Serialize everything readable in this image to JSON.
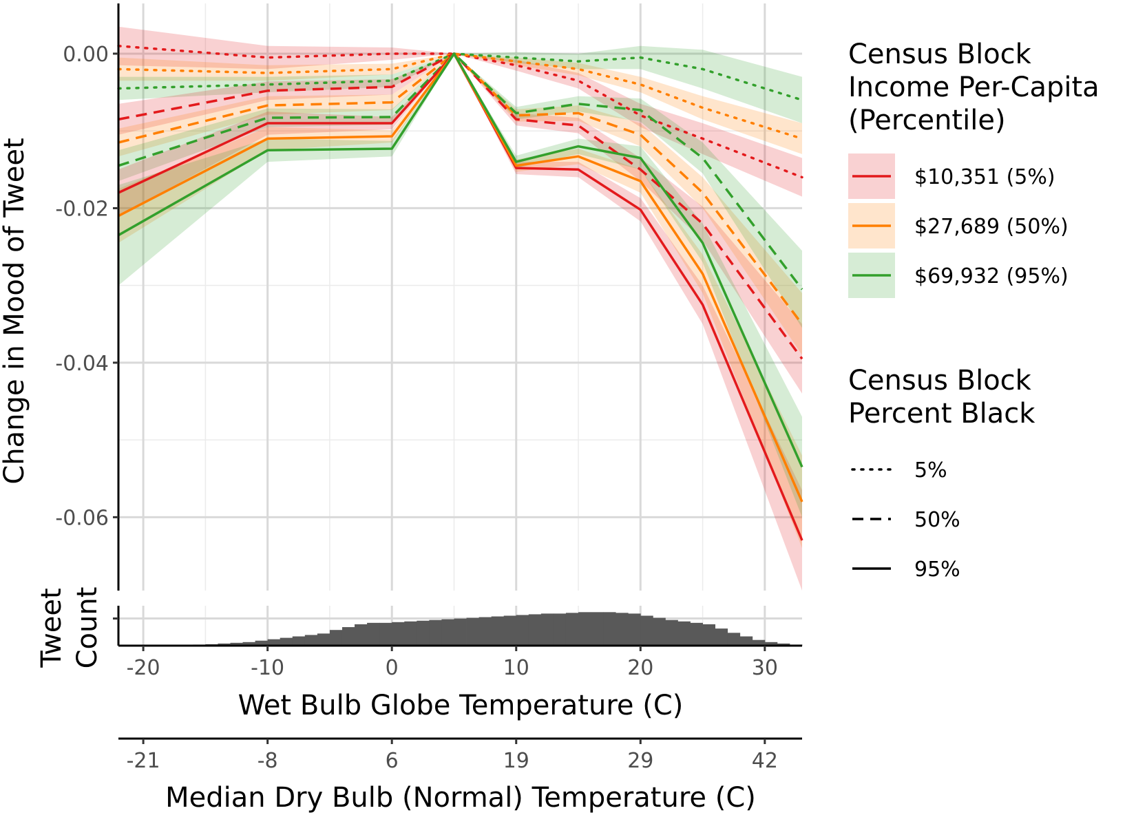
{
  "chart_data": {
    "type": "line",
    "ylabel": "Change in Mood of Tweet",
    "xlabel": "Wet Bulb Globe Temperature (C)",
    "x2label": "Median Dry Bulb (Normal) Temperature (C)",
    "hist_label_1": "Tweet",
    "hist_label_2": "Count",
    "xlim": [
      -22,
      33
    ],
    "ylim": [
      -0.0695,
      0.0065
    ],
    "x_ticks": [
      -20,
      -10,
      0,
      10,
      20,
      30
    ],
    "x_tick_labels": [
      "-20",
      "-10",
      "0",
      "10",
      "20",
      "30"
    ],
    "x_minor_ticks": [
      -15,
      -5,
      5,
      15,
      25
    ],
    "y_ticks": [
      0.0,
      -0.02,
      -0.04,
      -0.06
    ],
    "y_tick_labels": [
      "0.00",
      "-0.02",
      "-0.04",
      "-0.06"
    ],
    "y_minor_ticks": [
      -0.01,
      -0.03,
      -0.05
    ],
    "x2_ticks": [
      -20,
      -10,
      0,
      10,
      20,
      30
    ],
    "x2_tick_labels": [
      "-21",
      "-8",
      "6",
      "19",
      "29",
      "42"
    ],
    "grid": true,
    "x": [
      -22,
      -10,
      0,
      5,
      10,
      15,
      20,
      25,
      33
    ],
    "income_legend": {
      "title_lines": [
        "Census Block",
        "Income Per-Capita",
        "(Percentile)"
      ],
      "entries": [
        {
          "label": "$10,351 (5%)",
          "color": "#e31a1c",
          "fill": "#f4a6a8"
        },
        {
          "label": "$27,689 (50%)",
          "color": "#ff7f00",
          "fill": "#fdd9b0"
        },
        {
          "label": "$69,932 (95%)",
          "color": "#33a02c",
          "fill": "#b8e0b4"
        }
      ]
    },
    "black_legend": {
      "title_lines": [
        "Census Block",
        "Percent Black"
      ],
      "entries": [
        {
          "label": "5%",
          "dash": "dotted"
        },
        {
          "label": "50%",
          "dash": "dashed"
        },
        {
          "label": "95%",
          "dash": "solid"
        }
      ]
    },
    "series": [
      {
        "income": 0,
        "black": 0,
        "values": [
          0.001,
          -0.0005,
          0.0,
          0.0,
          -0.0015,
          -0.0035,
          -0.008,
          -0.011,
          -0.016
        ],
        "band": [
          0.0025,
          0.0015,
          0.0008,
          0.0,
          0.0007,
          0.001,
          0.0015,
          0.002,
          0.0025
        ]
      },
      {
        "income": 1,
        "black": 0,
        "values": [
          -0.002,
          -0.0025,
          -0.002,
          0.0,
          -0.001,
          -0.002,
          -0.004,
          -0.007,
          -0.011
        ],
        "band": [
          0.0015,
          0.001,
          0.0007,
          0.0,
          0.0005,
          0.0008,
          0.001,
          0.0015,
          0.002
        ]
      },
      {
        "income": 2,
        "black": 0,
        "values": [
          -0.0045,
          -0.004,
          -0.0035,
          0.0,
          -0.0005,
          -0.001,
          -0.0005,
          -0.002,
          -0.006
        ],
        "band": [
          0.0015,
          0.001,
          0.0008,
          0.0,
          0.0007,
          0.001,
          0.0015,
          0.0025,
          0.003
        ]
      },
      {
        "income": 0,
        "black": 1,
        "values": [
          -0.0085,
          -0.0048,
          -0.0043,
          0.0,
          -0.0085,
          -0.0093,
          -0.015,
          -0.022,
          -0.0395
        ],
        "band": [
          0.002,
          0.0012,
          0.001,
          0.0,
          0.0008,
          0.001,
          0.0015,
          0.0022,
          0.0045
        ]
      },
      {
        "income": 1,
        "black": 1,
        "values": [
          -0.0115,
          -0.0067,
          -0.0063,
          0.0,
          -0.008,
          -0.0077,
          -0.0105,
          -0.018,
          -0.035
        ],
        "band": [
          0.0018,
          0.0012,
          0.001,
          0.0,
          0.0008,
          0.001,
          0.0015,
          0.002,
          0.004
        ]
      },
      {
        "income": 2,
        "black": 1,
        "values": [
          -0.0145,
          -0.0083,
          -0.0082,
          0.0,
          -0.0077,
          -0.0065,
          -0.0073,
          -0.0135,
          -0.0305
        ],
        "band": [
          0.002,
          0.0012,
          0.001,
          0.0,
          0.0008,
          0.001,
          0.0015,
          0.002,
          0.005
        ]
      },
      {
        "income": 0,
        "black": 2,
        "values": [
          -0.018,
          -0.009,
          -0.009,
          0.0,
          -0.0148,
          -0.015,
          -0.0202,
          -0.0325,
          -0.063
        ],
        "band": [
          0.003,
          0.0015,
          0.0008,
          0.0,
          0.0008,
          0.001,
          0.0015,
          0.0025,
          0.0065
        ]
      },
      {
        "income": 1,
        "black": 2,
        "values": [
          -0.021,
          -0.011,
          -0.0107,
          0.0,
          -0.0145,
          -0.0133,
          -0.0165,
          -0.0285,
          -0.058
        ],
        "band": [
          0.0035,
          0.0015,
          0.0008,
          0.0,
          0.0008,
          0.001,
          0.0015,
          0.0025,
          0.006
        ]
      },
      {
        "income": 2,
        "black": 2,
        "values": [
          -0.0235,
          -0.0125,
          -0.0123,
          0.0,
          -0.014,
          -0.012,
          -0.0135,
          -0.0245,
          -0.0535
        ],
        "band": [
          0.0065,
          0.0015,
          0.001,
          0.0,
          0.0008,
          0.001,
          0.0015,
          0.0025,
          0.0065
        ]
      }
    ],
    "histogram": {
      "bin_width": 1,
      "bins_start": -20,
      "counts": [
        0.3,
        0.5,
        0.7,
        1,
        1.5,
        2,
        3,
        4,
        5,
        7,
        9,
        11,
        13,
        15,
        17,
        22,
        26,
        30,
        32,
        32,
        33,
        34,
        35,
        36,
        37,
        38,
        39,
        40,
        41,
        42,
        43,
        44,
        45,
        45,
        46,
        47,
        47,
        47,
        46,
        45,
        42,
        39,
        36,
        34,
        32,
        30,
        24,
        18,
        13,
        8,
        5,
        3,
        1.5,
        0.7,
        0.3
      ],
      "max": 56
    }
  }
}
